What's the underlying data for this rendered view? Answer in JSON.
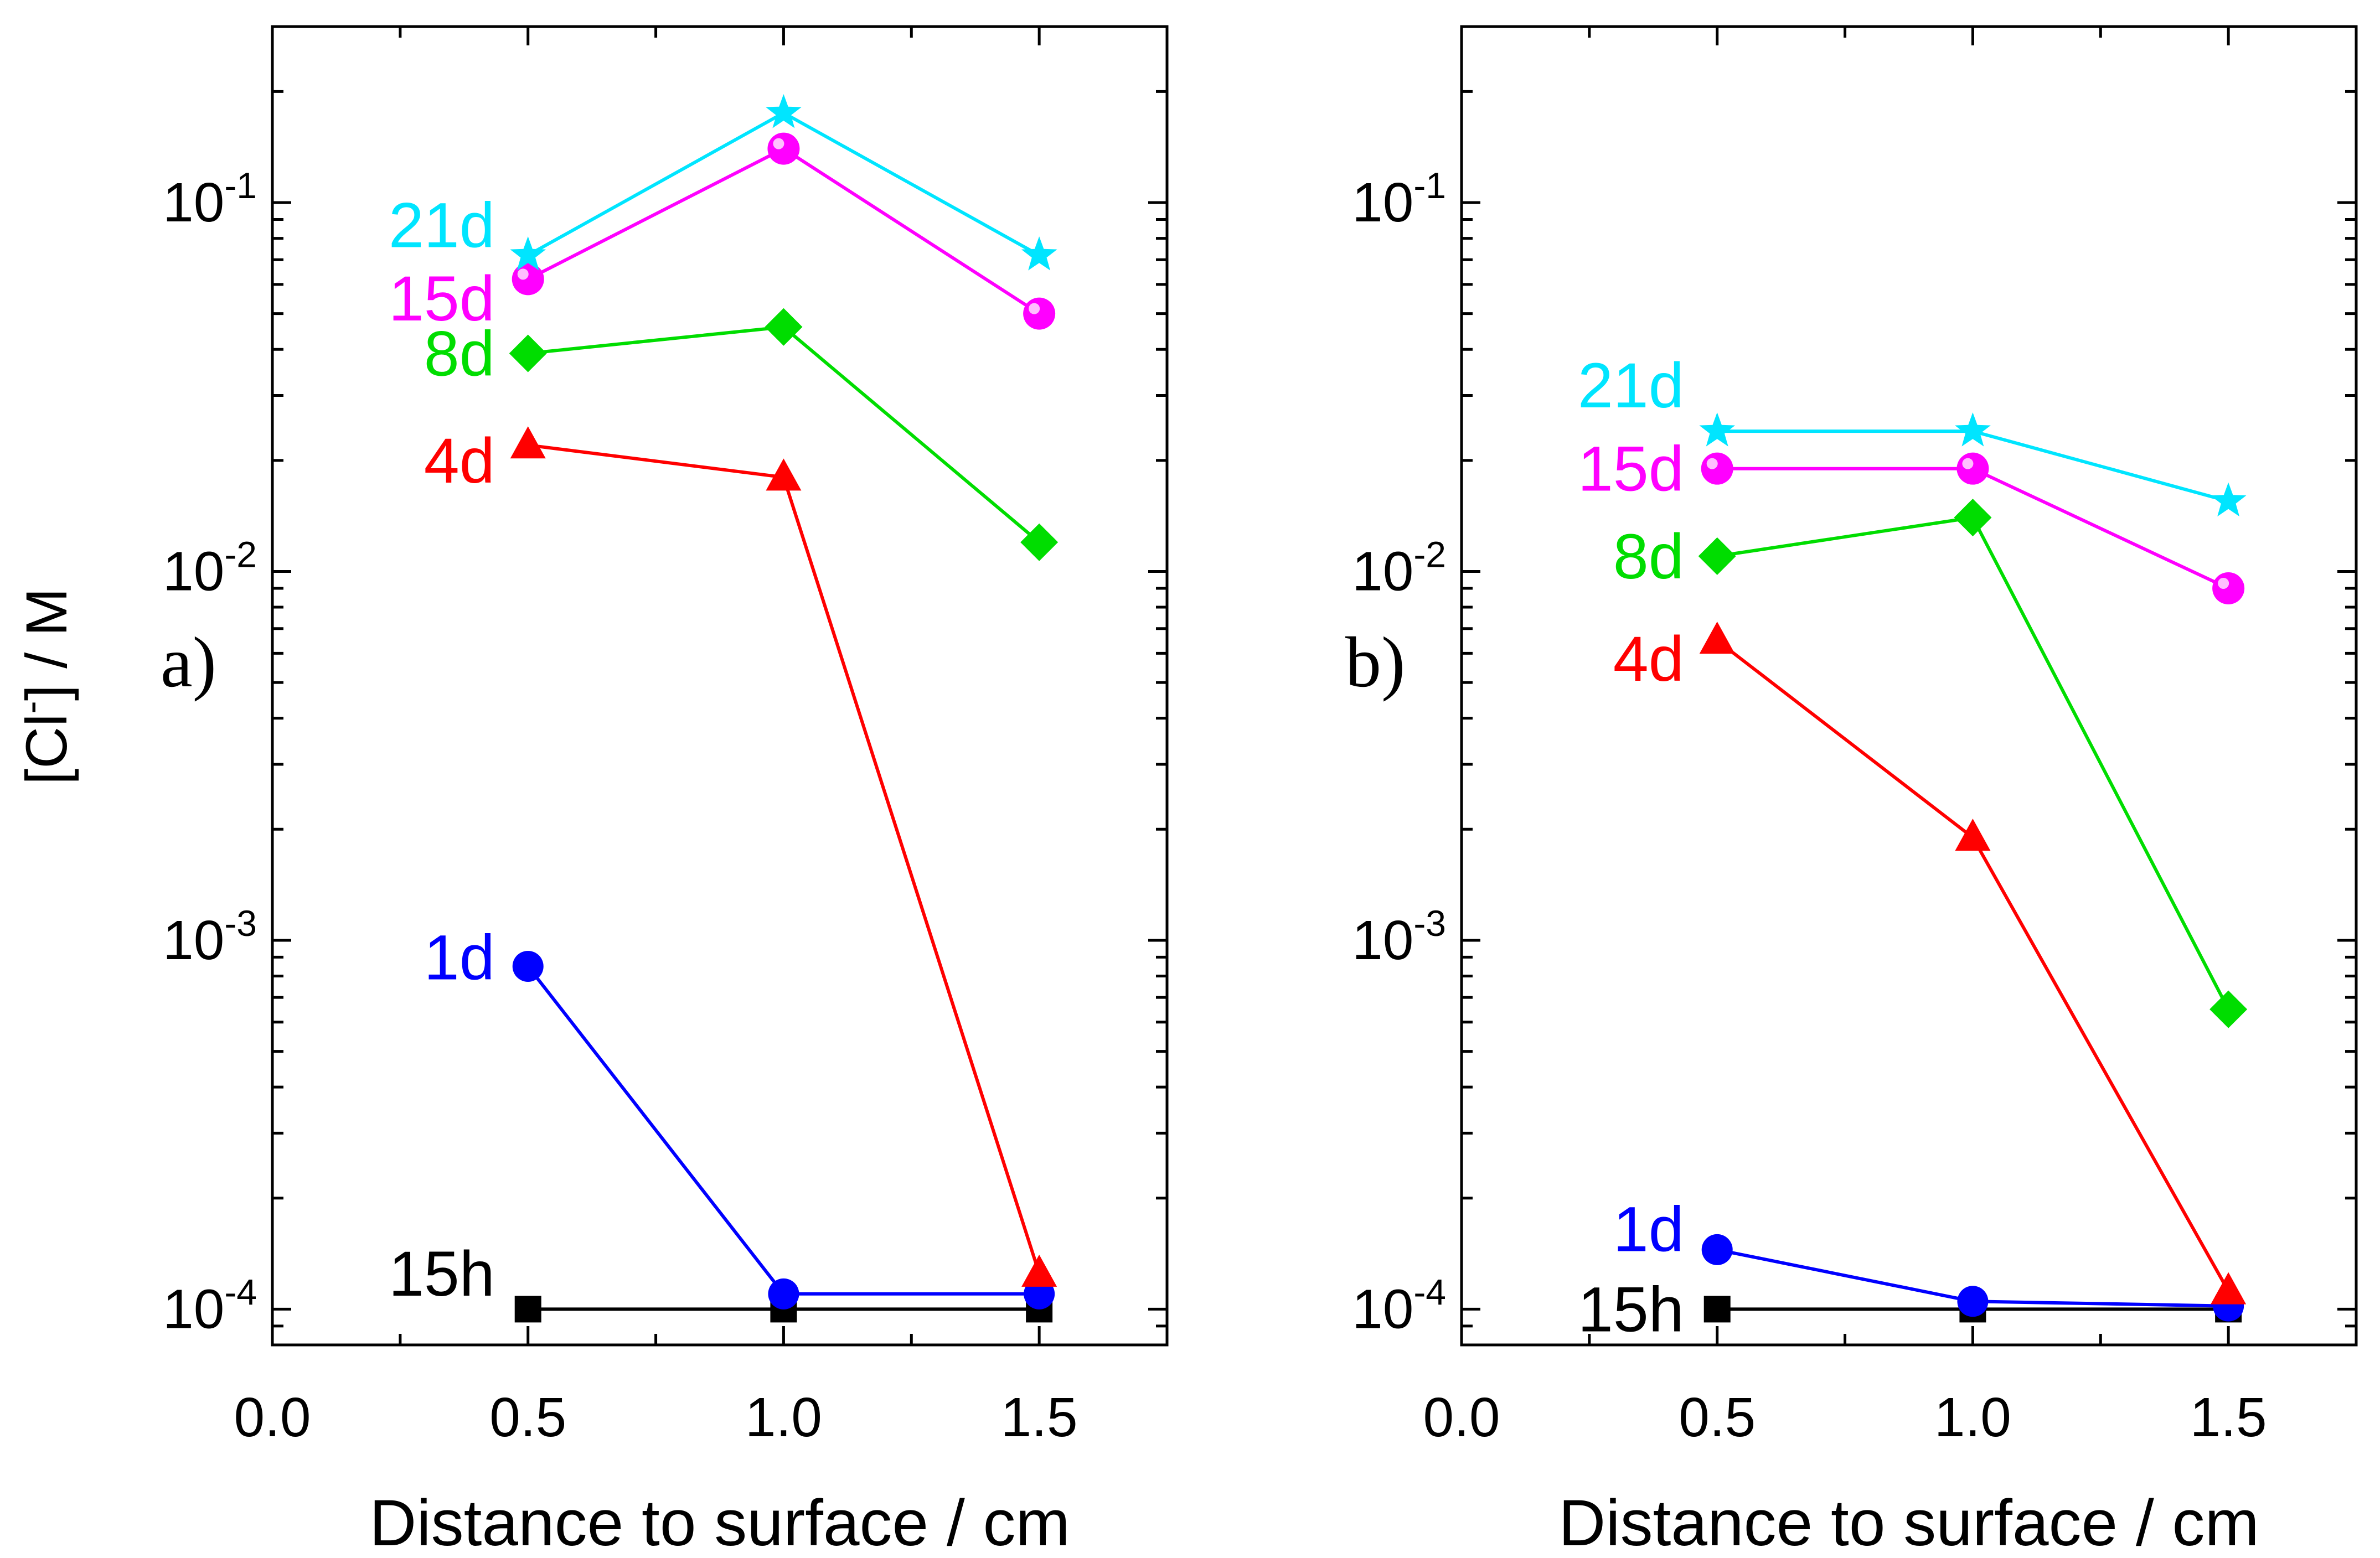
{
  "chart_data": [
    {
      "panel_label": "a)",
      "type": "line",
      "xlabel": "Distance to surface / cm",
      "ylabel": {
        "main": "[Cl",
        "sup": "-",
        "tail": "] / M"
      },
      "xlim": [
        0.0,
        1.75
      ],
      "ylim": [
        8e-05,
        0.3
      ],
      "yscale": "log",
      "xticks": [
        0.0,
        0.5,
        1.0,
        1.5
      ],
      "xtick_labels": [
        "0.0",
        "0.5",
        "1.0",
        "1.5"
      ],
      "ytick_labels": [
        {
          "base": "10",
          "exp": "-4",
          "value": 0.0001
        },
        {
          "base": "10",
          "exp": "-3",
          "value": 0.001
        },
        {
          "base": "10",
          "exp": "-2",
          "value": 0.01
        },
        {
          "base": "10",
          "exp": "-1",
          "value": 0.1
        }
      ],
      "series": [
        {
          "name": "15h",
          "color": "#000000",
          "marker": "square",
          "x": [
            0.5,
            1.0,
            1.5
          ],
          "values": [
            0.0001,
            0.0001,
            0.0001
          ],
          "label_at": {
            "x": 0.5,
            "y": 0.000125
          }
        },
        {
          "name": "1d",
          "color": "#0000ff",
          "marker": "circle",
          "x": [
            0.5,
            1.0,
            1.5
          ],
          "values": [
            0.00085,
            0.00011,
            0.00011
          ],
          "label_at": {
            "x": 0.5,
            "y": 0.0009
          }
        },
        {
          "name": "4d",
          "color": "#ff0000",
          "marker": "triangle",
          "x": [
            0.5,
            1.0,
            1.5
          ],
          "values": [
            0.022,
            0.018,
            0.000125
          ],
          "label_at": {
            "x": 0.5,
            "y": 0.02
          }
        },
        {
          "name": "8d",
          "color": "#00dd00",
          "marker": "diamond",
          "x": [
            0.5,
            1.0,
            1.5
          ],
          "values": [
            0.039,
            0.046,
            0.012
          ],
          "label_at": {
            "x": 0.5,
            "y": 0.039
          }
        },
        {
          "name": "15d",
          "color": "#ff00ff",
          "marker": "sphere",
          "x": [
            0.5,
            1.0,
            1.5
          ],
          "values": [
            0.062,
            0.14,
            0.05
          ],
          "label_at": {
            "x": 0.5,
            "y": 0.055
          }
        },
        {
          "name": "21d",
          "color": "#00e5ff",
          "marker": "star",
          "x": [
            0.5,
            1.0,
            1.5
          ],
          "values": [
            0.072,
            0.175,
            0.072
          ],
          "label_at": {
            "x": 0.5,
            "y": 0.087
          }
        }
      ]
    },
    {
      "panel_label": "b)",
      "type": "line",
      "xlabel": "Distance to surface / cm",
      "xlim": [
        0.0,
        1.75
      ],
      "ylim": [
        8e-05,
        0.3
      ],
      "yscale": "log",
      "xticks": [
        0.0,
        0.5,
        1.0,
        1.5
      ],
      "xtick_labels": [
        "0.0",
        "0.5",
        "1.0",
        "1.5"
      ],
      "ytick_labels": [
        {
          "base": "10",
          "exp": "-4",
          "value": 0.0001
        },
        {
          "base": "10",
          "exp": "-3",
          "value": 0.001
        },
        {
          "base": "10",
          "exp": "-2",
          "value": 0.01
        },
        {
          "base": "10",
          "exp": "-1",
          "value": 0.1
        }
      ],
      "series": [
        {
          "name": "15h",
          "color": "#000000",
          "marker": "square",
          "x": [
            0.5,
            1.0,
            1.5
          ],
          "values": [
            0.0001,
            0.0001,
            0.0001
          ],
          "label_at": {
            "x": 0.5,
            "y": 0.0001
          }
        },
        {
          "name": "1d",
          "color": "#0000ff",
          "marker": "circle",
          "x": [
            0.5,
            1.0,
            1.5
          ],
          "values": [
            0.000145,
            0.000105,
            0.000102
          ],
          "label_at": {
            "x": 0.5,
            "y": 0.000165
          }
        },
        {
          "name": "4d",
          "color": "#ff0000",
          "marker": "triangle",
          "x": [
            0.5,
            1.0,
            1.5
          ],
          "values": [
            0.0065,
            0.0019,
            0.000112
          ],
          "label_at": {
            "x": 0.5,
            "y": 0.0058
          }
        },
        {
          "name": "8d",
          "color": "#00dd00",
          "marker": "diamond",
          "x": [
            0.5,
            1.0,
            1.5
          ],
          "values": [
            0.011,
            0.014,
            0.00065
          ],
          "label_at": {
            "x": 0.5,
            "y": 0.011
          }
        },
        {
          "name": "15d",
          "color": "#ff00ff",
          "marker": "sphere",
          "x": [
            0.5,
            1.0,
            1.5
          ],
          "values": [
            0.019,
            0.019,
            0.009
          ],
          "label_at": {
            "x": 0.5,
            "y": 0.019
          }
        },
        {
          "name": "21d",
          "color": "#00e5ff",
          "marker": "star",
          "x": [
            0.5,
            1.0,
            1.5
          ],
          "values": [
            0.024,
            0.024,
            0.0155
          ],
          "label_at": {
            "x": 0.5,
            "y": 0.032
          }
        }
      ]
    }
  ]
}
